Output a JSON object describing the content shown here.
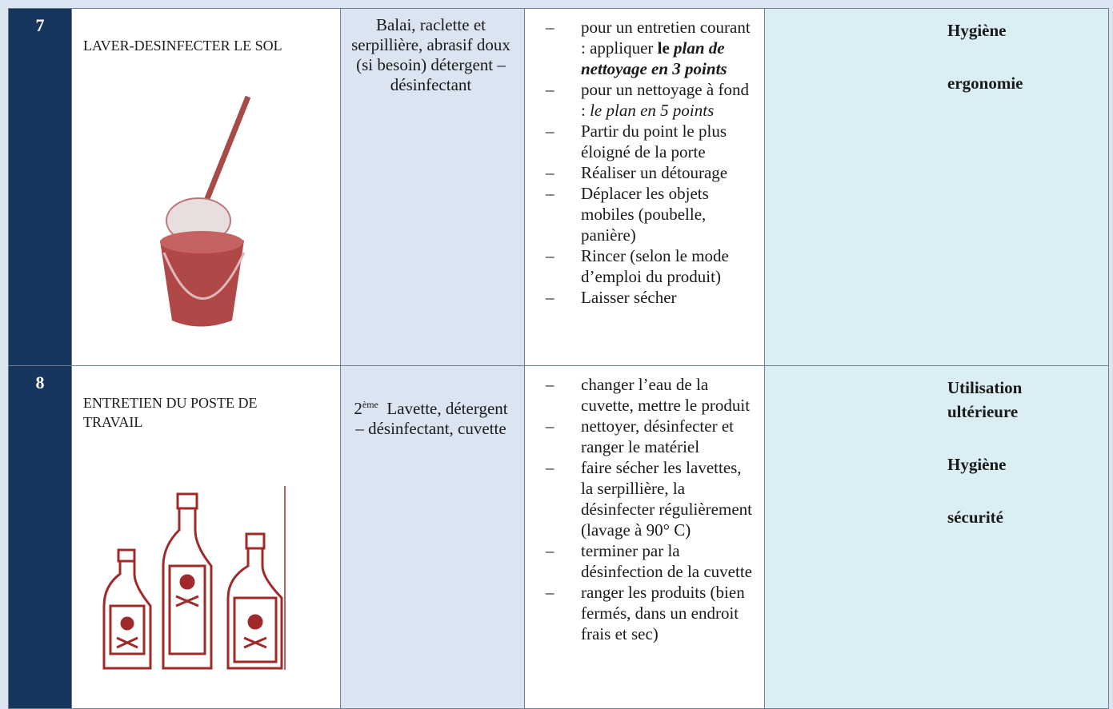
{
  "rows": [
    {
      "number": "7",
      "task": "LAVER-DESINFECTER LE SOL",
      "materials": "Balai, raclette et serpillière, abrasif doux (si besoin) détergent – désinfectant",
      "steps": [
        [
          "pour un entretien courant : appliquer",
          "le",
          "plan de nettoyage en 3 points"
        ],
        [
          "pour un nettoyage à fond :",
          "le plan en 5 points"
        ],
        "Partir du point le plus éloigné de la porte",
        "Réaliser un détourage",
        "Déplacer les objets mobiles (poubelle, panière)",
        "Rincer (selon le mode d’emploi du produit)",
        "Laisser sécher"
      ],
      "notes": [
        "Hygiène",
        "ergonomie"
      ]
    },
    {
      "number": "8",
      "task": "ENTRETIEN DU POSTE DE TRAVAIL",
      "materials": [
        "2",
        "ème",
        "Lavette, détergent – désinfectant, cuvette"
      ],
      "steps": [
        "changer l’eau de la cuvette, mettre le produit",
        "nettoyer,  désinfecter et ranger le matériel",
        "faire sécher les lavettes, la serpillière, la désinfecter régulièrement (lavage à 90° C)",
        "terminer par la désinfection de la cuvette",
        "ranger les produits (bien fermés, dans un endroit frais et sec)"
      ],
      "notes": [
        "Utilisation ultérieure",
        "Hygiène",
        "sécurité"
      ]
    }
  ]
}
